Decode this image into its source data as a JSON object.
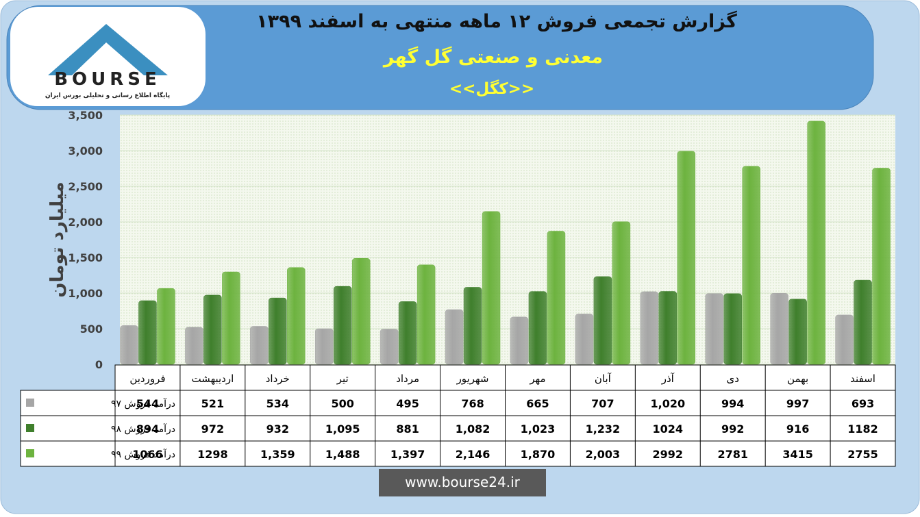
{
  "header": {
    "logo_text": "BOURSE",
    "logo_subtitle": "پایگاه اطلاع رسانی و تحلیلی بورس ایران"
  },
  "chart_data": {
    "type": "bar",
    "title": "گزارش تجمعی فروش ۱۲ ماهه منتهی به اسفند ۱۳۹۹",
    "subtitle": "معدنی و صنعتی گل گهر",
    "symbol": "<<کگل>>",
    "y_label": "میلیارد تومان",
    "categories": [
      "فروردین",
      "اردیبهشت",
      "خرداد",
      "تیر",
      "مرداد",
      "شهریور",
      "مهر",
      "آبان",
      "آذر",
      "دی",
      "بهمن",
      "اسفند"
    ],
    "series": [
      {
        "name": "درآمد فروش ۹۷",
        "color": "#a6a6a6",
        "values": [
          544,
          521,
          534,
          500,
          495,
          768,
          665,
          707,
          1020,
          994,
          997,
          693
        ],
        "value_labels": [
          "544",
          "521",
          "534",
          "500",
          "495",
          "768",
          "665",
          "707",
          "1,020",
          "994",
          "997",
          "693"
        ]
      },
      {
        "name": "درآمد فروش ۹۸",
        "color": "#3f7f2c",
        "values": [
          894,
          972,
          932,
          1095,
          881,
          1082,
          1023,
          1232,
          1024,
          992,
          916,
          1182
        ],
        "value_labels": [
          "894",
          "972",
          "932",
          "1,095",
          "881",
          "1,082",
          "1,023",
          "1,232",
          "1024",
          "992",
          "916",
          "1182"
        ]
      },
      {
        "name": "درآمد فروش ۹۹",
        "color": "#6db33f",
        "values": [
          1066,
          1298,
          1359,
          1488,
          1397,
          2146,
          1870,
          2003,
          2992,
          2781,
          3415,
          2755
        ],
        "value_labels": [
          "1066",
          "1298",
          "1,359",
          "1,488",
          "1,397",
          "2,146",
          "1,870",
          "2,003",
          "2992",
          "2781",
          "3415",
          "2755"
        ]
      }
    ],
    "ylim": [
      0,
      3500
    ],
    "yticks": [
      0,
      500,
      {
        "value": 1000,
        "label": "1,000"
      },
      {
        "value": 1500,
        "label": "1,500"
      },
      {
        "value": 2000,
        "label": "2,000"
      },
      {
        "value": 2500,
        "label": "2,500"
      },
      {
        "value": 3000,
        "label": "3,000"
      },
      {
        "value": 3500,
        "label": "3,500"
      }
    ],
    "grid": true
  },
  "footer": {
    "url": "www.bourse24.ir"
  }
}
